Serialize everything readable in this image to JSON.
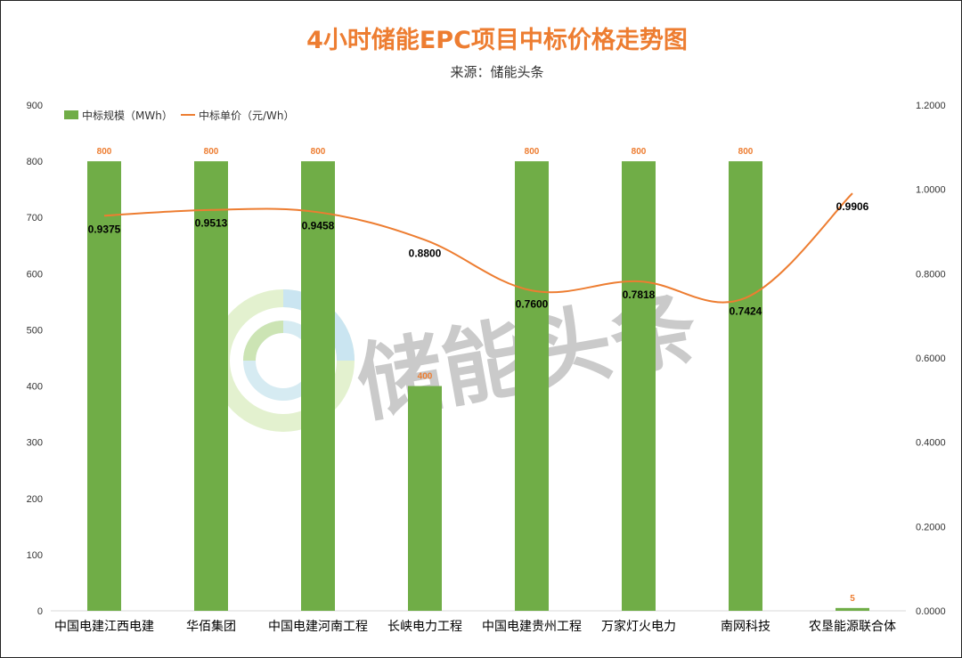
{
  "chart_data": {
    "type": "bar",
    "title": "4小时储能EPC项目中标价格走势图",
    "subtitle": "来源：储能头条",
    "categories": [
      "中国电建江西电建",
      "华佰集团",
      "中国电建河南工程",
      "长峡电力工程",
      "中国电建贵州工程",
      "万家灯火电力",
      "南网科技",
      "农垦能源联合体"
    ],
    "series": [
      {
        "name": "中标规模（MWh）",
        "type": "bar",
        "axis": "left",
        "color": "#70AD47",
        "values": [
          800,
          800,
          800,
          400,
          800,
          800,
          800,
          5
        ],
        "labels": [
          "800",
          "800",
          "800",
          "400",
          "800",
          "800",
          "800",
          "5"
        ]
      },
      {
        "name": "中标单价（元/Wh）",
        "type": "line",
        "axis": "right",
        "color": "#ED7D31",
        "values": [
          0.9375,
          0.9513,
          0.9458,
          0.88,
          0.76,
          0.7818,
          0.7424,
          0.9906
        ],
        "labels": [
          "0.9375",
          "0.9513",
          "0.9458",
          "0.8800",
          "0.7600",
          "0.7818",
          "0.7424",
          "0.9906"
        ]
      }
    ],
    "y_left": {
      "min": 0,
      "max": 900,
      "ticks": [
        "0",
        "100",
        "200",
        "300",
        "400",
        "500",
        "600",
        "700",
        "800",
        "900"
      ]
    },
    "y_right": {
      "min": 0,
      "max": 1.2,
      "ticks": [
        "0.0000",
        "0.2000",
        "0.4000",
        "0.6000",
        "0.8000",
        "1.0000",
        "1.2000"
      ]
    },
    "legend": "top-left",
    "grid": false
  },
  "watermark": {
    "text": "储能头条"
  }
}
